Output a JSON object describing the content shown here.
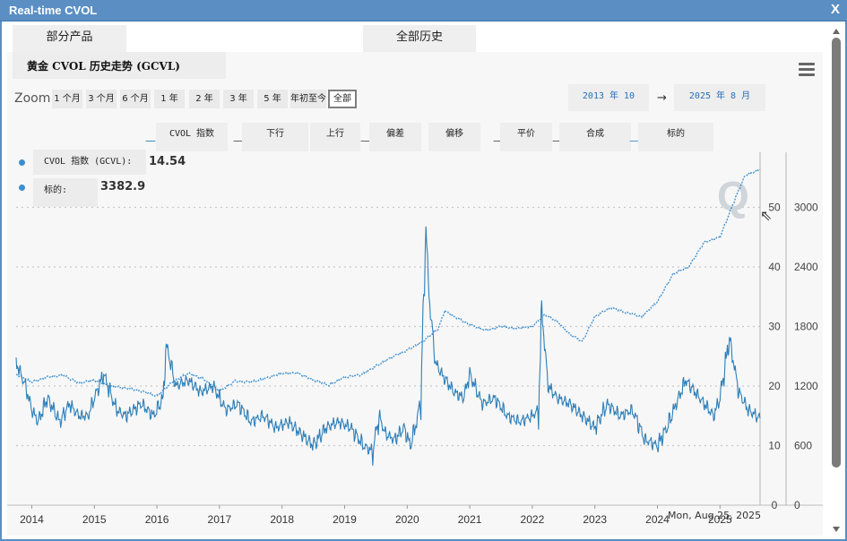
{
  "window": {
    "title": "Real-time CVOL",
    "close_label": "X"
  },
  "tabs": [
    {
      "label": "部分产品",
      "active": false
    },
    {
      "label": "全部历史",
      "active": true
    }
  ],
  "chart_title": "黄金 CVOL 历史走势 (GCVL)",
  "menu_icon": "hamburger-menu-icon",
  "zoom": {
    "label": "Zoom",
    "buttons": [
      "1 个月",
      "3 个月",
      "6 个月",
      "1 年",
      "2 年",
      "3 年",
      "5 年",
      "年初至今",
      "全部"
    ],
    "active": "全部"
  },
  "date_range": {
    "from": "2013 年 10",
    "arrow": "→",
    "to": "2025 年 8 月"
  },
  "legend": [
    "CVOL 指数",
    "下行",
    "上行",
    "偏差",
    "偏移",
    "平价",
    "合成",
    "标的"
  ],
  "tooltip": {
    "rows": [
      {
        "label": "CVOL 指数 (GCVL):",
        "value": "14.54"
      },
      {
        "label": "标的:",
        "value": "3382.9"
      }
    ],
    "date": "Mon, Aug 25, 2025"
  },
  "colors": {
    "cvol": "#2e7fb8",
    "underlying": "#3c8fd0",
    "grid": "#c8c8c8",
    "panel": "#f7f7f7"
  },
  "chart_data": {
    "type": "line",
    "title": "黄金 CVOL 历史走势 (GCVL)",
    "x_ticks": [
      "2014",
      "2015",
      "2016",
      "2017",
      "2018",
      "2019",
      "2020",
      "2021",
      "2022",
      "2023",
      "2024",
      "2025"
    ],
    "left_axis": {
      "series": "CVOL 指数",
      "ticks": [
        0,
        10,
        20,
        30,
        40,
        50
      ],
      "range": [
        0,
        60
      ]
    },
    "right_axis": {
      "series": "标的",
      "ticks": [
        0,
        600,
        1200,
        1800,
        2400,
        3000
      ],
      "range": [
        0,
        3600
      ]
    },
    "series": [
      {
        "name": "CVOL 指数",
        "axis": "left",
        "style": "solid",
        "x": [
          2013.75,
          2013.9,
          2014.0,
          2014.1,
          2014.25,
          2014.45,
          2014.6,
          2014.75,
          2014.9,
          2015.0,
          2015.15,
          2015.35,
          2015.5,
          2015.75,
          2015.95,
          2016.1,
          2016.15,
          2016.3,
          2016.5,
          2016.7,
          2016.9,
          2017.1,
          2017.3,
          2017.5,
          2017.7,
          2017.9,
          2018.1,
          2018.3,
          2018.5,
          2018.7,
          2018.9,
          2019.1,
          2019.3,
          2019.45,
          2019.55,
          2019.65,
          2019.8,
          2019.95,
          2020.05,
          2020.15,
          2020.22,
          2020.3,
          2020.35,
          2020.45,
          2020.55,
          2020.75,
          2020.9,
          2021.0,
          2021.2,
          2021.4,
          2021.6,
          2021.8,
          2022.0,
          2022.1,
          2022.15,
          2022.25,
          2022.4,
          2022.6,
          2022.8,
          2023.0,
          2023.2,
          2023.4,
          2023.6,
          2023.8,
          2024.0,
          2024.15,
          2024.3,
          2024.45,
          2024.6,
          2024.75,
          2024.9,
          2025.0,
          2025.15,
          2025.3,
          2025.45,
          2025.64
        ],
        "y": [
          24,
          20,
          16,
          14,
          18,
          14,
          17,
          15,
          15,
          18,
          22,
          16,
          15,
          17,
          15,
          18,
          27,
          20,
          21,
          19,
          20,
          16,
          17,
          14,
          15,
          13,
          14,
          12,
          10,
          13,
          14,
          13,
          10,
          9,
          15,
          12,
          11,
          13,
          10,
          14,
          18,
          47,
          35,
          24,
          22,
          19,
          18,
          22,
          17,
          18,
          15,
          14,
          15,
          16,
          33,
          20,
          18,
          17,
          15,
          13,
          17,
          15,
          16,
          11,
          10,
          13,
          17,
          21,
          19,
          17,
          15,
          18,
          28,
          19,
          16,
          14.54
        ]
      },
      {
        "name": "标的",
        "axis": "right",
        "style": "dashed",
        "x": [
          2013.75,
          2014.0,
          2014.25,
          2014.5,
          2014.75,
          2015.0,
          2015.25,
          2015.5,
          2015.75,
          2016.0,
          2016.25,
          2016.5,
          2016.75,
          2017.0,
          2017.25,
          2017.5,
          2017.75,
          2018.0,
          2018.25,
          2018.5,
          2018.75,
          2019.0,
          2019.25,
          2019.5,
          2019.75,
          2020.0,
          2020.25,
          2020.5,
          2020.6,
          2020.75,
          2021.0,
          2021.25,
          2021.5,
          2021.75,
          2022.0,
          2022.2,
          2022.4,
          2022.6,
          2022.8,
          2023.0,
          2023.25,
          2023.5,
          2023.75,
          2024.0,
          2024.25,
          2024.5,
          2024.75,
          2025.0,
          2025.25,
          2025.4,
          2025.64
        ],
        "y": [
          1320,
          1240,
          1290,
          1310,
          1230,
          1260,
          1200,
          1180,
          1150,
          1100,
          1240,
          1330,
          1270,
          1150,
          1250,
          1240,
          1280,
          1330,
          1330,
          1260,
          1210,
          1290,
          1310,
          1400,
          1490,
          1560,
          1650,
          1780,
          1960,
          1900,
          1820,
          1760,
          1800,
          1780,
          1800,
          1920,
          1850,
          1720,
          1650,
          1900,
          1990,
          1940,
          1900,
          2050,
          2330,
          2400,
          2650,
          2700,
          3100,
          3320,
          3382.9
        ]
      }
    ]
  }
}
